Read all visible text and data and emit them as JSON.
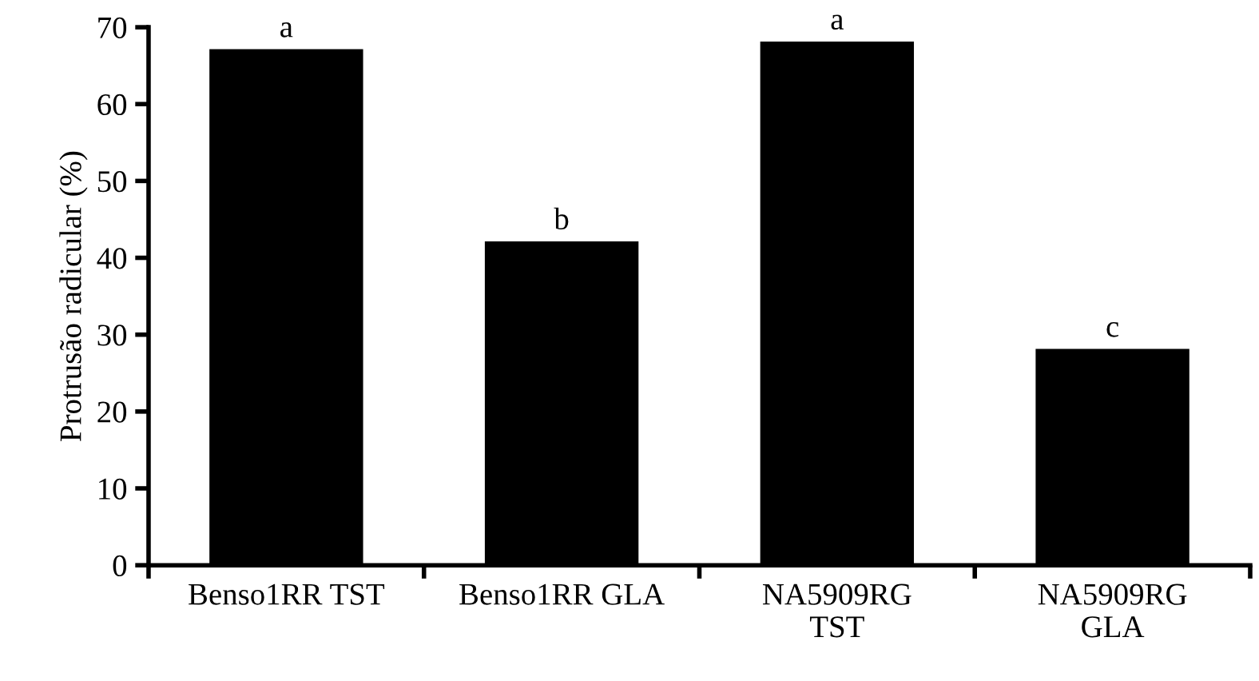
{
  "chart_data": {
    "type": "bar",
    "ylabel": "Protrusão radicular (%)",
    "categories": [
      "Benso1RR TST",
      "Benso1RR GLA",
      "NA5909RG\nTST",
      "NA5909RG\nGLA"
    ],
    "values": [
      67,
      42,
      68,
      28
    ],
    "color": "#000000",
    "ylim": [
      0,
      70
    ],
    "yticks": [
      0,
      10,
      20,
      30,
      40,
      50,
      60,
      70
    ],
    "grid": false,
    "legend": false,
    "annotations": [
      {
        "text": "a",
        "x": "Benso1RR TST",
        "y": 67
      },
      {
        "text": "b",
        "x": "Benso1RR GLA",
        "y": 42
      },
      {
        "text": "a",
        "x": "NA5909RG\nTST",
        "y": 68
      },
      {
        "text": "c",
        "x": "NA5909RG\nGLA",
        "y": 28
      }
    ]
  }
}
